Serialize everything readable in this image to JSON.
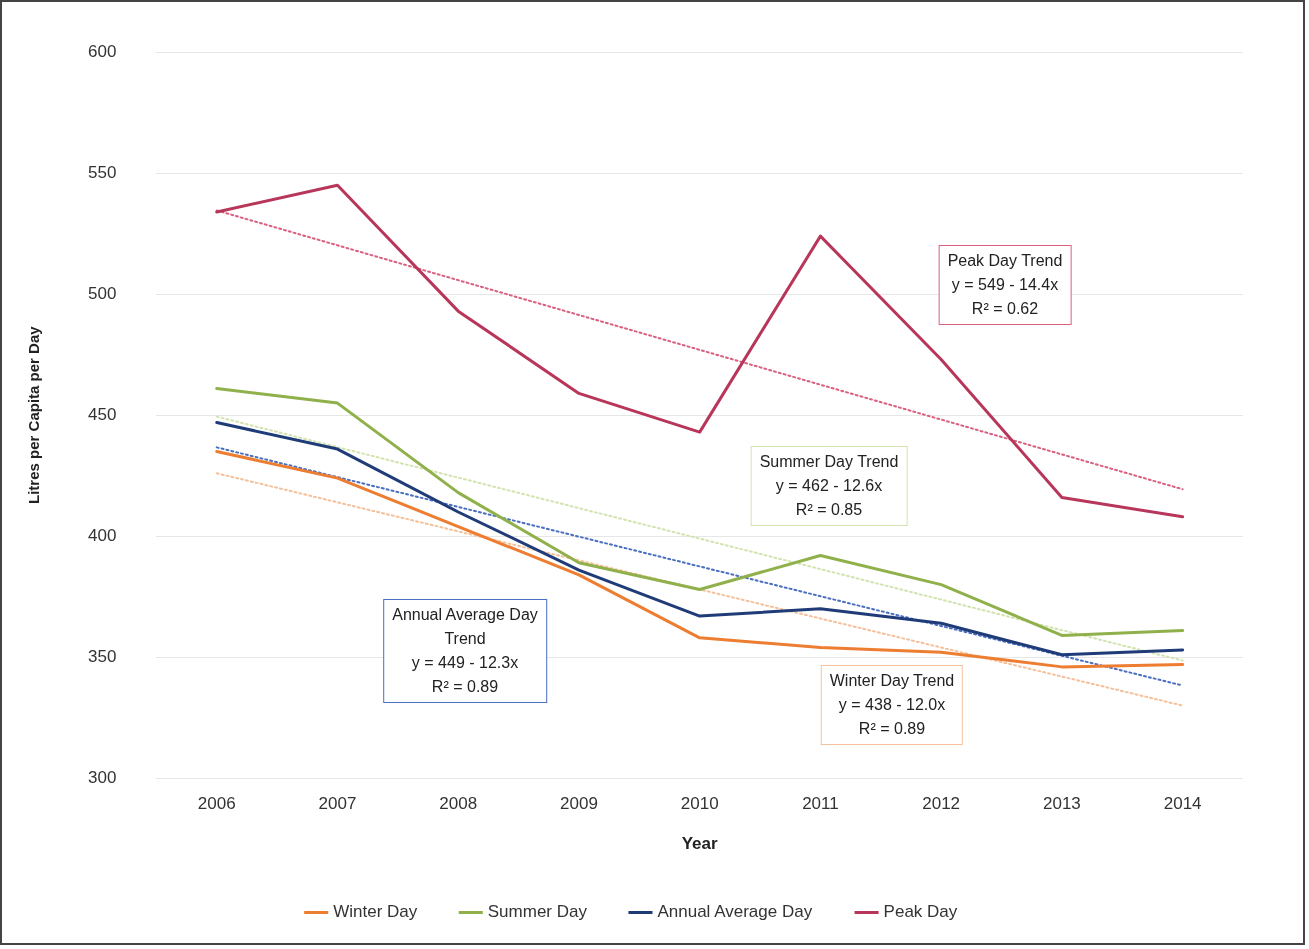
{
  "chart_data": {
    "type": "line",
    "xlabel": "Year",
    "ylabel": "Litres per Capita per Day",
    "categories": [
      "2006",
      "2007",
      "2008",
      "2009",
      "2010",
      "2011",
      "2012",
      "2013",
      "2014"
    ],
    "series": [
      {
        "name": "Winter Day",
        "color": "#ed7d31",
        "values": [
          435,
          424,
          404,
          384,
          358,
          354,
          352,
          346,
          347
        ]
      },
      {
        "name": "Summer Day",
        "color": "#8fb04a",
        "values": [
          461,
          455,
          418,
          389,
          378,
          392,
          380,
          359,
          361
        ]
      },
      {
        "name": "Annual Average Day",
        "color": "#203c78",
        "values": [
          447,
          436,
          410,
          386,
          367,
          370,
          364,
          351,
          353
        ]
      },
      {
        "name": "Peak Day",
        "color": "#b8365a",
        "values": [
          534,
          545,
          493,
          459,
          443,
          524,
          473,
          416,
          408
        ]
      },
      {
        "type": "line",
        "color": "#f5c09a",
        "values": [
          426,
          414,
          402,
          390,
          378,
          366,
          354,
          342,
          330
        ],
        "line_style": "dotted"
      },
      {
        "type": "line",
        "color": "#d3e3b0",
        "values": [
          449.4,
          436.8,
          424.2,
          411.6,
          399,
          386.4,
          373.8,
          361.2,
          348.6
        ],
        "line_style": "dotted"
      },
      {
        "type": "line",
        "color": "#4a6fc0",
        "values": [
          436.7,
          424.4,
          412.1,
          399.8,
          387.5,
          375.2,
          362.9,
          350.6,
          338.3
        ],
        "line_style": "dotted"
      },
      {
        "type": "line",
        "color": "#d9607f",
        "values": [
          534.6,
          520.2,
          505.8,
          491.4,
          477,
          462.6,
          448.2,
          433.8,
          419.4
        ],
        "line_style": "dotted"
      }
    ],
    "annotations": [
      "Winter Day Trend\ny = 438 - 12.0x\nR² = 0.89",
      "Summer Day Trend\ny = 462 - 12.6x\nR² = 0.85",
      "Annual Average Day\nTrend\ny = 449 - 12.3x\nR² = 0.89",
      "Peak Day Trend\ny = 549 - 14.4x\nR² = 0.62"
    ],
    "ylim": [
      300,
      600
    ],
    "yticks": [
      300,
      350,
      400,
      450,
      500,
      550,
      600
    ],
    "grid": "y",
    "legend": "bottom",
    "marker": "none",
    "line_style": "solid"
  }
}
